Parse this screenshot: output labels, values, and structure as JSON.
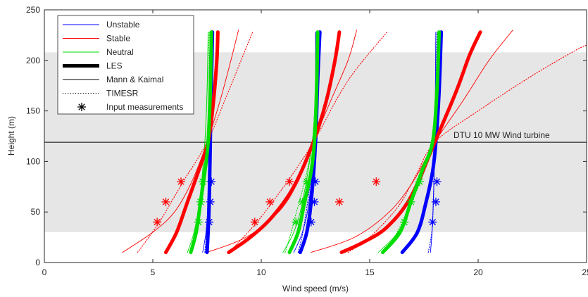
{
  "chart_data": {
    "type": "line",
    "xlabel": "Wind speed (m/s)",
    "ylabel": "Height (m)",
    "xlim": [
      0,
      25
    ],
    "ylim": [
      0,
      250
    ],
    "x_ticks": [
      0,
      5,
      10,
      15,
      20,
      25
    ],
    "y_ticks": [
      0,
      50,
      100,
      150,
      200,
      250
    ],
    "grid": false,
    "legend_position": "top-left",
    "shaded_band": {
      "y_from": 30,
      "y_to": 208,
      "color": "#e6e6e6"
    },
    "reference_line": {
      "y": 119,
      "label": "DTU 10 MW Wind turbine"
    },
    "colors": {
      "Unstable": "#0000ff",
      "Stable": "#ff0000",
      "Neutral": "#00dd00"
    },
    "legend": [
      {
        "label": "Unstable",
        "style": "thin",
        "color": "#0000ff"
      },
      {
        "label": "Stable",
        "style": "thin",
        "color": "#ff0000"
      },
      {
        "label": "Neutral",
        "style": "thin",
        "color": "#00dd00"
      },
      {
        "label": "LES",
        "style": "thick",
        "color": "#000000"
      },
      {
        "label": "Mann & Kaimal",
        "style": "thin",
        "color": "#000000"
      },
      {
        "label": "TIMESR",
        "style": "dotted",
        "color": "#000000"
      },
      {
        "label": "Input measurements",
        "style": "marker",
        "color": "#000000"
      }
    ],
    "series": [
      {
        "name": "Unstable",
        "model": "LES",
        "group": 1,
        "points": [
          [
            7.5,
            10
          ],
          [
            7.55,
            30
          ],
          [
            7.6,
            60
          ],
          [
            7.65,
            119
          ],
          [
            7.7,
            180
          ],
          [
            7.75,
            228
          ]
        ]
      },
      {
        "name": "Stable",
        "model": "LES",
        "group": 1,
        "points": [
          [
            5.6,
            10
          ],
          [
            6.1,
            30
          ],
          [
            6.6,
            60
          ],
          [
            7.1,
            90
          ],
          [
            7.55,
            119
          ],
          [
            7.8,
            160
          ],
          [
            7.95,
            200
          ],
          [
            8.0,
            228
          ]
        ]
      },
      {
        "name": "Neutral",
        "model": "LES",
        "group": 1,
        "points": [
          [
            6.75,
            10
          ],
          [
            7.0,
            30
          ],
          [
            7.2,
            60
          ],
          [
            7.4,
            90
          ],
          [
            7.55,
            119
          ],
          [
            7.65,
            170
          ],
          [
            7.7,
            228
          ]
        ]
      },
      {
        "name": "Unstable",
        "model": "Mann & Kaimal",
        "group": 1,
        "points": [
          [
            7.3,
            10
          ],
          [
            7.45,
            30
          ],
          [
            7.55,
            60
          ],
          [
            7.6,
            119
          ],
          [
            7.6,
            180
          ],
          [
            7.65,
            228
          ]
        ]
      },
      {
        "name": "Stable",
        "model": "Mann & Kaimal",
        "group": 1,
        "points": [
          [
            3.6,
            10
          ],
          [
            5.0,
            30
          ],
          [
            6.0,
            50
          ],
          [
            6.8,
            80
          ],
          [
            7.5,
            119
          ],
          [
            8.1,
            160
          ],
          [
            8.6,
            200
          ],
          [
            8.95,
            230
          ]
        ]
      },
      {
        "name": "Neutral",
        "model": "Mann & Kaimal",
        "group": 1,
        "points": [
          [
            6.6,
            10
          ],
          [
            6.9,
            30
          ],
          [
            7.15,
            60
          ],
          [
            7.4,
            119
          ],
          [
            7.5,
            170
          ],
          [
            7.55,
            228
          ]
        ]
      },
      {
        "name": "Unstable",
        "model": "TIMESR",
        "group": 1,
        "points": [
          [
            7.4,
            10
          ],
          [
            7.5,
            40
          ],
          [
            7.6,
            119
          ],
          [
            7.7,
            228
          ]
        ]
      },
      {
        "name": "Stable",
        "model": "TIMESR",
        "group": 1,
        "points": [
          [
            4.3,
            10
          ],
          [
            5.3,
            40
          ],
          [
            6.4,
            80
          ],
          [
            7.5,
            119
          ],
          [
            8.5,
            170
          ],
          [
            9.6,
            228
          ]
        ]
      },
      {
        "name": "Neutral",
        "model": "TIMESR",
        "group": 1,
        "points": [
          [
            6.75,
            10
          ],
          [
            7.05,
            40
          ],
          [
            7.4,
            119
          ],
          [
            7.6,
            228
          ]
        ]
      },
      {
        "name": "Unstable",
        "model": "LES",
        "group": 2,
        "points": [
          [
            11.8,
            10
          ],
          [
            12.1,
            30
          ],
          [
            12.3,
            60
          ],
          [
            12.5,
            119
          ],
          [
            12.6,
            180
          ],
          [
            12.7,
            228
          ]
        ]
      },
      {
        "name": "Stable",
        "model": "LES",
        "group": 2,
        "points": [
          [
            8.5,
            10
          ],
          [
            9.5,
            25
          ],
          [
            10.5,
            45
          ],
          [
            11.5,
            75
          ],
          [
            12.4,
            119
          ],
          [
            13.0,
            160
          ],
          [
            13.4,
            200
          ],
          [
            13.6,
            228
          ]
        ]
      },
      {
        "name": "Neutral",
        "model": "LES",
        "group": 2,
        "points": [
          [
            11.3,
            10
          ],
          [
            11.7,
            30
          ],
          [
            12.0,
            60
          ],
          [
            12.3,
            90
          ],
          [
            12.45,
            119
          ],
          [
            12.55,
            170
          ],
          [
            12.6,
            228
          ]
        ]
      },
      {
        "name": "Unstable",
        "model": "Mann & Kaimal",
        "group": 2,
        "points": [
          [
            11.5,
            10
          ],
          [
            11.9,
            30
          ],
          [
            12.2,
            60
          ],
          [
            12.45,
            119
          ],
          [
            12.5,
            180
          ],
          [
            12.5,
            228
          ]
        ]
      },
      {
        "name": "Stable",
        "model": "Mann & Kaimal",
        "group": 2,
        "points": [
          [
            7.5,
            10
          ],
          [
            9.3,
            25
          ],
          [
            10.8,
            50
          ],
          [
            11.7,
            80
          ],
          [
            12.4,
            119
          ],
          [
            13.2,
            160
          ],
          [
            14.0,
            200
          ],
          [
            14.4,
            230
          ]
        ]
      },
      {
        "name": "Neutral",
        "model": "Mann & Kaimal",
        "group": 2,
        "points": [
          [
            11.0,
            10
          ],
          [
            11.5,
            30
          ],
          [
            11.9,
            60
          ],
          [
            12.35,
            119
          ],
          [
            12.5,
            170
          ],
          [
            12.6,
            228
          ]
        ]
      },
      {
        "name": "Unstable",
        "model": "TIMESR",
        "group": 2,
        "points": [
          [
            11.7,
            10
          ],
          [
            12.0,
            40
          ],
          [
            12.45,
            119
          ],
          [
            12.6,
            228
          ]
        ]
      },
      {
        "name": "Stable",
        "model": "TIMESR",
        "group": 2,
        "points": [
          [
            8.5,
            10
          ],
          [
            9.8,
            40
          ],
          [
            11.2,
            80
          ],
          [
            12.4,
            119
          ],
          [
            14.0,
            180
          ],
          [
            15.8,
            228
          ]
        ]
      },
      {
        "name": "Neutral",
        "model": "TIMESR",
        "group": 2,
        "points": [
          [
            11.1,
            10
          ],
          [
            11.5,
            40
          ],
          [
            12.35,
            119
          ],
          [
            12.6,
            228
          ]
        ]
      },
      {
        "name": "Unstable",
        "model": "LES",
        "group": 3,
        "points": [
          [
            16.5,
            10
          ],
          [
            17.2,
            30
          ],
          [
            17.6,
            60
          ],
          [
            17.9,
            90
          ],
          [
            18.05,
            119
          ],
          [
            18.2,
            170
          ],
          [
            18.3,
            228
          ]
        ]
      },
      {
        "name": "Stable",
        "model": "LES",
        "group": 3,
        "points": [
          [
            13.7,
            10
          ],
          [
            14.7,
            20
          ],
          [
            15.8,
            35
          ],
          [
            16.9,
            65
          ],
          [
            18.0,
            119
          ],
          [
            19.0,
            170
          ],
          [
            19.6,
            205
          ],
          [
            20.1,
            228
          ]
        ]
      },
      {
        "name": "Neutral",
        "model": "LES",
        "group": 3,
        "points": [
          [
            15.6,
            10
          ],
          [
            16.4,
            30
          ],
          [
            16.9,
            60
          ],
          [
            17.4,
            90
          ],
          [
            17.9,
            119
          ],
          [
            18.1,
            170
          ],
          [
            18.2,
            228
          ]
        ]
      },
      {
        "name": "Unstable",
        "model": "Mann & Kaimal",
        "group": 3,
        "points": [
          [
            17.8,
            10
          ],
          [
            17.9,
            40
          ],
          [
            18.0,
            119
          ],
          [
            18.05,
            228
          ]
        ]
      },
      {
        "name": "Stable",
        "model": "Mann & Kaimal",
        "group": 3,
        "points": [
          [
            12.3,
            10
          ],
          [
            14.3,
            25
          ],
          [
            15.9,
            50
          ],
          [
            17.0,
            80
          ],
          [
            18.0,
            119
          ],
          [
            19.3,
            160
          ],
          [
            20.5,
            200
          ],
          [
            21.6,
            230
          ]
        ]
      },
      {
        "name": "Neutral",
        "model": "Mann & Kaimal",
        "group": 3,
        "points": [
          [
            15.4,
            10
          ],
          [
            16.3,
            30
          ],
          [
            16.9,
            60
          ],
          [
            17.9,
            119
          ],
          [
            18.1,
            170
          ],
          [
            18.2,
            228
          ]
        ]
      },
      {
        "name": "Unstable",
        "model": "TIMESR",
        "group": 3,
        "points": [
          [
            17.7,
            10
          ],
          [
            17.9,
            40
          ],
          [
            18.0,
            119
          ],
          [
            18.1,
            228
          ]
        ]
      },
      {
        "name": "Stable",
        "model": "TIMESR",
        "group": 3,
        "points": [
          [
            14.0,
            10
          ],
          [
            15.0,
            25
          ],
          [
            16.3,
            55
          ],
          [
            17.1,
            85
          ],
          [
            18.0,
            119
          ],
          [
            20.0,
            150
          ],
          [
            22.5,
            185
          ],
          [
            24.5,
            210
          ],
          [
            25.0,
            215
          ]
        ]
      },
      {
        "name": "Neutral",
        "model": "TIMESR",
        "group": 3,
        "points": [
          [
            15.6,
            10
          ],
          [
            16.5,
            40
          ],
          [
            17.9,
            119
          ],
          [
            18.2,
            228
          ]
        ]
      }
    ],
    "measurements": [
      {
        "name": "Stable",
        "points": [
          [
            5.2,
            40
          ],
          [
            5.6,
            60
          ],
          [
            6.3,
            80
          ],
          [
            9.7,
            40
          ],
          [
            10.4,
            60
          ],
          [
            11.3,
            80
          ],
          [
            13.6,
            60
          ],
          [
            15.3,
            80
          ]
        ]
      },
      {
        "name": "Neutral",
        "points": [
          [
            7.1,
            40
          ],
          [
            7.2,
            60
          ],
          [
            7.3,
            80
          ],
          [
            11.6,
            40
          ],
          [
            11.9,
            60
          ],
          [
            12.1,
            80
          ],
          [
            16.6,
            40
          ],
          [
            16.9,
            60
          ],
          [
            17.3,
            80
          ]
        ]
      },
      {
        "name": "Unstable",
        "points": [
          [
            7.6,
            40
          ],
          [
            7.65,
            60
          ],
          [
            7.7,
            80
          ],
          [
            12.3,
            40
          ],
          [
            12.45,
            60
          ],
          [
            12.5,
            80
          ],
          [
            17.9,
            40
          ],
          [
            18.05,
            60
          ],
          [
            18.1,
            80
          ]
        ]
      }
    ]
  }
}
